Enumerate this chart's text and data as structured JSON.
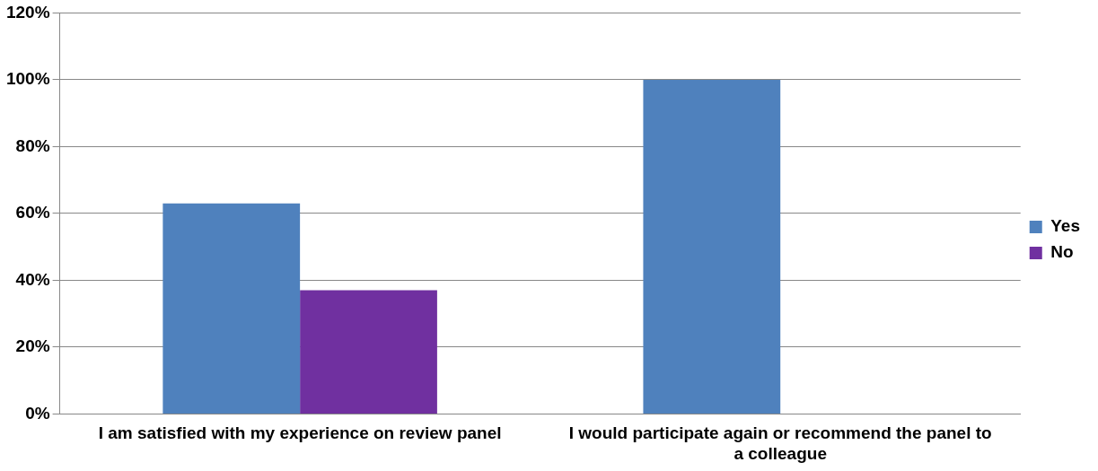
{
  "chart_data": {
    "type": "bar",
    "categories": [
      "I am satisfied with my experience on review panel",
      "I would participate again or recommend the panel to a colleague"
    ],
    "series": [
      {
        "name": "Yes",
        "color": "#4f81bd",
        "values": [
          63,
          100
        ]
      },
      {
        "name": "No",
        "color": "#7030a0",
        "values": [
          37,
          0
        ]
      }
    ],
    "ylim": [
      0,
      120
    ],
    "yticks": [
      {
        "value": 0,
        "label": "0%"
      },
      {
        "value": 20,
        "label": "20%"
      },
      {
        "value": 40,
        "label": "40%"
      },
      {
        "value": 60,
        "label": "60%"
      },
      {
        "value": 80,
        "label": "80%"
      },
      {
        "value": 100,
        "label": "100%"
      },
      {
        "value": 120,
        "label": "120%"
      }
    ],
    "grid": "y",
    "legend": "right"
  }
}
